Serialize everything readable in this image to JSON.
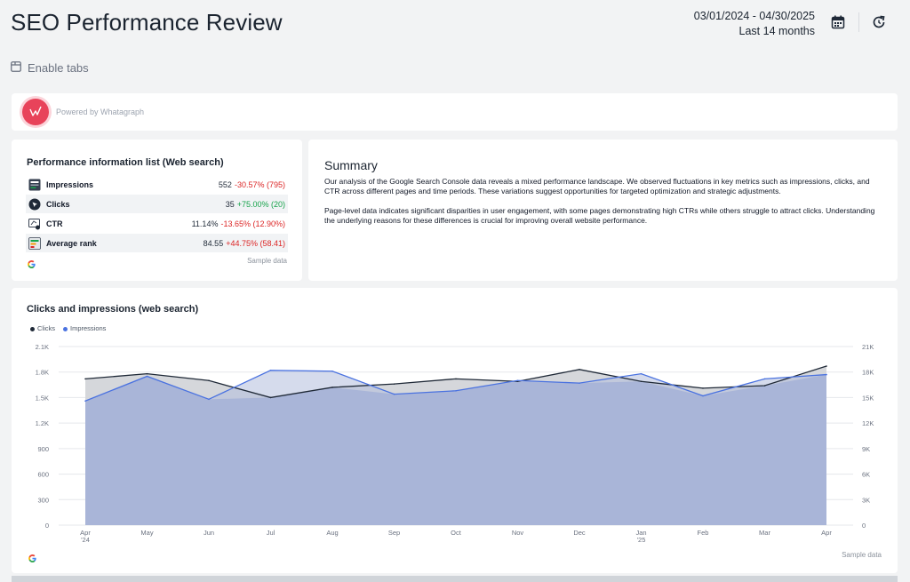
{
  "header": {
    "title": "SEO Performance Review",
    "date_range": "03/01/2024 - 04/30/2025",
    "date_period": "Last 14 months",
    "calendar_icon": "calendar-icon",
    "refresh_icon": "refresh-icon"
  },
  "enable_tabs": {
    "label": "Enable tabs",
    "icon": "tabs-icon"
  },
  "powered": {
    "text": "Powered by Whatagraph",
    "logo": "whatagraph-logo"
  },
  "performance": {
    "title": "Performance information list (Web search)",
    "rows": [
      {
        "label": "Impressions",
        "value": "552",
        "change": "-30.57% (795)",
        "trend": "neg",
        "icon": "impressions-icon"
      },
      {
        "label": "Clicks",
        "value": "35",
        "change": "+75.00% (20)",
        "trend": "pos",
        "icon": "clicks-icon"
      },
      {
        "label": "CTR",
        "value": "11.14%",
        "change": "-13.65% (12.90%)",
        "trend": "neg",
        "icon": "ctr-icon"
      },
      {
        "label": "Average rank",
        "value": "84.55",
        "change": "+44.75% (58.41)",
        "trend": "neg",
        "icon": "rank-icon"
      }
    ],
    "sample": "Sample data",
    "source_icon": "google-icon"
  },
  "summary": {
    "title": "Summary",
    "p1": "Our analysis of the Google Search Console data reveals a mixed performance landscape. We observed fluctuations in key metrics such as impressions, clicks, and CTR across different pages and time periods. These variations suggest opportunities for targeted optimization and strategic adjustments.",
    "p2": "Page-level data indicates significant disparities in user engagement, with some pages demonstrating high CTRs while others struggle to attract clicks. Understanding the underlying reasons for these differences is crucial for improving overall website performance."
  },
  "chart_card": {
    "title": "Clicks and impressions (web search)",
    "sample": "Sample data",
    "source_icon": "google-icon"
  },
  "chart_data": {
    "type": "area",
    "title": "Clicks and impressions (web search)",
    "categories": [
      "Apr '24",
      "May",
      "Jun",
      "Jul",
      "Aug",
      "Sep",
      "Oct",
      "Nov",
      "Dec",
      "Jan '25",
      "Feb",
      "Mar",
      "Apr"
    ],
    "category_labels": [
      [
        "Apr",
        "'24"
      ],
      [
        "May"
      ],
      [
        "Jun"
      ],
      [
        "Jul"
      ],
      [
        "Aug"
      ],
      [
        "Sep"
      ],
      [
        "Oct"
      ],
      [
        "Nov"
      ],
      [
        "Dec"
      ],
      [
        "Jan",
        "'25"
      ],
      [
        "Feb"
      ],
      [
        "Mar"
      ],
      [
        "Apr"
      ]
    ],
    "series": [
      {
        "name": "Clicks",
        "axis": "left",
        "color": "#1f2937",
        "fill": "#d3d5d9",
        "values": [
          1720,
          1780,
          1700,
          1500,
          1620,
          1660,
          1720,
          1690,
          1830,
          1690,
          1610,
          1640,
          1870
        ]
      },
      {
        "name": "Impressions",
        "axis": "right",
        "color": "#4a72e0",
        "fill": "#b2bddd",
        "values": [
          14600,
          17500,
          14800,
          18200,
          18100,
          15400,
          15800,
          17000,
          16700,
          17800,
          15200,
          17200,
          17700
        ]
      }
    ],
    "y_left": {
      "min": 0,
      "max": 2100,
      "ticks": [
        0,
        300,
        600,
        900,
        1200,
        1500,
        1800,
        2100
      ],
      "tick_labels": [
        "0",
        "300",
        "600",
        "900",
        "1.2K",
        "1.5K",
        "1.8K",
        "2.1K"
      ]
    },
    "y_right": {
      "min": 0,
      "max": 21000,
      "ticks": [
        0,
        3000,
        6000,
        9000,
        12000,
        15000,
        18000,
        21000
      ],
      "tick_labels": [
        "0",
        "3K",
        "6K",
        "9K",
        "12K",
        "15K",
        "18K",
        "21K"
      ]
    },
    "grid": true,
    "legend": "top-left"
  },
  "colors": {
    "accent": "#4a72e0",
    "negative": "#dc2626",
    "positive": "#16a34a",
    "logo": "#e8435a"
  }
}
